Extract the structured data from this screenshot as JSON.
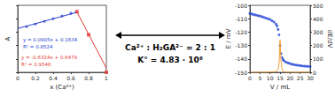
{
  "chart_data": [
    {
      "type": "scatter",
      "x_label": "x (Ca²⁺)",
      "y_label": "A",
      "xlim": [
        0,
        1
      ],
      "xticks": [
        0,
        0.2,
        0.4,
        0.6,
        0.8,
        1
      ],
      "ylim": [
        0,
        0.25
      ],
      "yticks": [
        0,
        0.05,
        0.1,
        0.15,
        0.2,
        0.25
      ],
      "tick_labels": "x",
      "grid": false,
      "series": [
        {
          "type": "scatter",
          "color": "#2a3fcf",
          "marker": "circle",
          "x": [
            0.1,
            0.2,
            0.3,
            0.4,
            0.5,
            0.6
          ],
          "values": [
            0.17,
            0.18,
            0.19,
            0.2,
            0.21,
            0.22
          ]
        },
        {
          "type": "scatter",
          "color": "#e53935",
          "marker": "square",
          "x": [
            0.667,
            0.8,
            1
          ],
          "values": [
            0.226,
            0.14,
            0
          ]
        },
        {
          "type": "line",
          "color": "#2a3fcf",
          "marker": "none",
          "line_style": "solid",
          "x": [
            0,
            0.667
          ],
          "values": [
            0.1634,
            0.2238
          ]
        },
        {
          "type": "line",
          "color": "#e53935",
          "marker": "none",
          "line_style": "solid",
          "x": [
            0.667,
            1
          ],
          "values": [
            0.226,
            0.0155
          ]
        }
      ],
      "annotations": [
        {
          "text": "y = 0.0905x + 0.1634",
          "color": "#2a3fcf"
        },
        {
          "text": "R² = 0.8524",
          "color": "#2a3fcf"
        },
        {
          "text": "y = -0.6324x + 0.6479",
          "color": "#e53935"
        },
        {
          "text": "R² = 0.9546",
          "color": "#e53935"
        }
      ]
    },
    {
      "type": "line",
      "x_label": "V / mL",
      "y_label": "E / mV",
      "y2_label": "dE/dV",
      "xlim": [
        0,
        30
      ],
      "xticks": [
        0,
        5,
        10,
        15,
        20,
        25,
        30
      ],
      "ylim": [
        -150,
        -100
      ],
      "yticks": [
        -150,
        -140,
        -130,
        -120,
        -110,
        -100
      ],
      "y2lim": [
        0,
        500
      ],
      "y2ticks": [
        0,
        100,
        200,
        300,
        400,
        500
      ],
      "grid": false,
      "series": [
        {
          "type": "scatter",
          "color": "#1d3fd6",
          "marker": "circle",
          "x": [
            0,
            1,
            2,
            3,
            4,
            5,
            6,
            7,
            8,
            9,
            10,
            11,
            12,
            13,
            13.5,
            14,
            14.5,
            15,
            15.5,
            16,
            16.5,
            17,
            18,
            19,
            20,
            21,
            22,
            23,
            24,
            25,
            26,
            27,
            28,
            29,
            30
          ],
          "values": [
            -106,
            -106.5,
            -107,
            -107.3,
            -107.7,
            -108,
            -108.5,
            -109,
            -109.5,
            -110,
            -110.5,
            -111.5,
            -112.5,
            -114,
            -115.5,
            -118,
            -122,
            -130,
            -136,
            -139,
            -140.5,
            -141.5,
            -142.5,
            -143,
            -143.5,
            -144,
            -144.3,
            -144.6,
            -144.8,
            -145,
            -145.2,
            -145.4,
            -145.5,
            -145.6,
            -145.7
          ]
        },
        {
          "type": "line",
          "color": "#f39c34",
          "marker": "none",
          "line_style": "solid",
          "axis": "y2",
          "x": [
            0,
            5,
            10,
            12,
            13,
            14,
            14.5,
            15,
            15.5,
            16,
            17,
            18,
            20,
            25,
            30
          ],
          "values": [
            0,
            0,
            2,
            4,
            8,
            20,
            60,
            240,
            80,
            20,
            5,
            2,
            0,
            0,
            0
          ]
        }
      ]
    }
  ],
  "center_text": [
    "Ca²⁺ : H₂GA²⁻ = 2 : 1",
    "K° = 4.83 · 10⁶"
  ]
}
